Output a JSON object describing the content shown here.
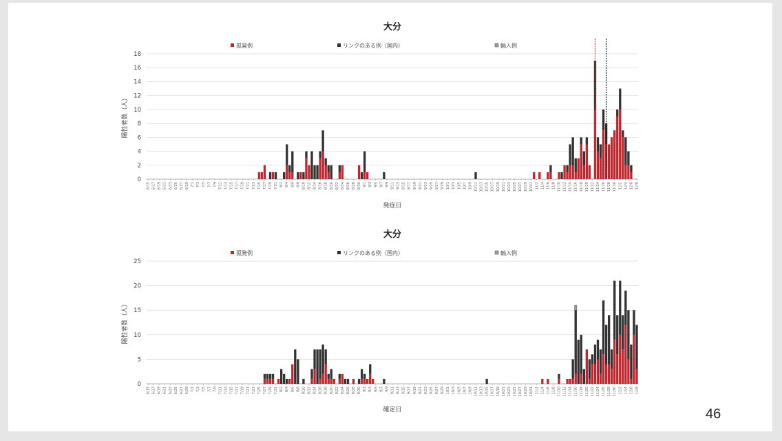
{
  "page_number": "46",
  "colors": {
    "isolated": "#c0262d",
    "linked": "#333333",
    "imported": "#9a9a9a",
    "grid": "#d9d9d9"
  },
  "x_tick_labels": [
    "6/15",
    "6/17",
    "6/19",
    "6/21",
    "6/23",
    "6/25",
    "6/27",
    "6/29",
    "7/1",
    "7/3",
    "7/5",
    "7/7",
    "7/9",
    "7/11",
    "7/13",
    "7/15",
    "7/17",
    "7/19",
    "7/21",
    "7/23",
    "7/25",
    "7/27",
    "7/29",
    "7/31",
    "8/2",
    "8/4",
    "8/6",
    "8/8",
    "8/10",
    "8/12",
    "8/14",
    "8/16",
    "8/18",
    "8/20",
    "8/22",
    "8/24",
    "8/26",
    "8/28",
    "8/30",
    "9/1",
    "9/3",
    "9/5",
    "9/7",
    "9/9",
    "9/11",
    "9/13",
    "9/15",
    "9/17",
    "9/19",
    "9/21",
    "9/23",
    "9/25",
    "9/27",
    "9/29",
    "10/1",
    "10/3",
    "10/5",
    "10/7",
    "10/9",
    "10/11",
    "10/13",
    "10/15",
    "10/17",
    "10/19",
    "10/21",
    "10/23",
    "10/25",
    "10/27",
    "10/29",
    "10/31",
    "11/2",
    "11/4",
    "11/6",
    "11/8",
    "11/10",
    "11/12",
    "11/14",
    "11/16",
    "11/18",
    "11/20",
    "11/22",
    "11/24",
    "11/26",
    "11/28",
    "11/30",
    "12/2",
    "12/4",
    "12/6",
    "12/8"
  ],
  "chart_data": [
    {
      "type": "bar",
      "stacked": true,
      "title": "大分",
      "xlabel": "発症日",
      "ylabel": "陽性者数（人）",
      "ylim": [
        0,
        18
      ],
      "yticks": [
        0,
        2,
        4,
        6,
        8,
        10,
        12,
        14,
        16,
        18
      ],
      "legend": [
        "孤発例",
        "リンクのある例（国内）",
        "輸入例"
      ],
      "legend_position": "top",
      "x_start": "6/15",
      "x_end": "12/8",
      "vlines": [
        {
          "date": "11/23",
          "color": "red",
          "style": "dashed"
        },
        {
          "date": "11/27",
          "color": "black",
          "style": "dashed"
        }
      ],
      "columns": [
        "date",
        "孤発例",
        "リンクのある例（国内）",
        "輸入例"
      ],
      "data": [
        [
          "7/25",
          1,
          0,
          0
        ],
        [
          "7/26",
          1,
          0,
          0
        ],
        [
          "7/27",
          2,
          0,
          0
        ],
        [
          "7/29",
          0,
          1,
          0
        ],
        [
          "7/30",
          1,
          0,
          0
        ],
        [
          "7/31",
          0,
          1,
          0
        ],
        [
          "8/3",
          0,
          1,
          0
        ],
        [
          "8/4",
          2,
          3,
          0
        ],
        [
          "8/5",
          1,
          1,
          0
        ],
        [
          "8/6",
          1,
          3,
          0
        ],
        [
          "8/8",
          0,
          1,
          0
        ],
        [
          "8/9",
          1,
          0,
          0
        ],
        [
          "8/10",
          0,
          1,
          0
        ],
        [
          "8/11",
          3,
          1,
          0
        ],
        [
          "8/12",
          2,
          0,
          0
        ],
        [
          "8/13",
          0,
          4,
          0
        ],
        [
          "8/14",
          0,
          2,
          0
        ],
        [
          "8/15",
          0,
          2,
          0
        ],
        [
          "8/16",
          3,
          1,
          0
        ],
        [
          "8/17",
          4,
          3,
          0
        ],
        [
          "8/18",
          2,
          1,
          0
        ],
        [
          "8/19",
          1,
          1,
          0
        ],
        [
          "8/20",
          0,
          2,
          0
        ],
        [
          "8/23",
          1,
          1,
          0
        ],
        [
          "8/24",
          2,
          0,
          0
        ],
        [
          "8/30",
          2,
          0,
          0
        ],
        [
          "8/31",
          0,
          1,
          0
        ],
        [
          "9/1",
          1,
          3,
          0
        ],
        [
          "9/2",
          1,
          0,
          0
        ],
        [
          "9/8",
          0,
          1,
          0
        ],
        [
          "10/11",
          0,
          1,
          0
        ],
        [
          "11/1",
          1,
          0,
          0
        ],
        [
          "11/3",
          1,
          0,
          0
        ],
        [
          "11/6",
          1,
          0,
          0
        ],
        [
          "11/7",
          1,
          1,
          0
        ],
        [
          "11/10",
          1,
          0,
          0
        ],
        [
          "11/11",
          0,
          1,
          0
        ],
        [
          "11/12",
          2,
          0,
          0
        ],
        [
          "11/13",
          1,
          1,
          0
        ],
        [
          "11/14",
          2,
          3,
          0
        ],
        [
          "11/15",
          2,
          4,
          0
        ],
        [
          "11/16",
          1,
          2,
          0
        ],
        [
          "11/17",
          3,
          0,
          0
        ],
        [
          "11/18",
          5,
          1,
          0
        ],
        [
          "11/19",
          2,
          2,
          0
        ],
        [
          "11/20",
          5,
          1,
          0
        ],
        [
          "11/21",
          2,
          0,
          0
        ],
        [
          "11/23",
          10,
          7,
          0
        ],
        [
          "11/24",
          4,
          2,
          0
        ],
        [
          "11/25",
          3,
          2,
          0
        ],
        [
          "11/26",
          7,
          3,
          0
        ],
        [
          "11/27",
          5,
          3,
          0
        ],
        [
          "11/28",
          5,
          0,
          0
        ],
        [
          "11/29",
          6,
          0,
          0
        ],
        [
          "11/30",
          7,
          0,
          0
        ],
        [
          "12/1",
          9,
          1,
          0
        ],
        [
          "12/2",
          10,
          3,
          0
        ],
        [
          "12/3",
          6,
          1,
          0
        ],
        [
          "12/4",
          2,
          4,
          0
        ],
        [
          "12/5",
          2,
          2,
          0
        ],
        [
          "12/6",
          1,
          1,
          0
        ]
      ]
    },
    {
      "type": "bar",
      "stacked": true,
      "title": "大分",
      "xlabel": "確定日",
      "ylabel": "陽性者数（人）",
      "ylim": [
        0,
        25
      ],
      "yticks": [
        0,
        5,
        10,
        15,
        20,
        25
      ],
      "legend": [
        "孤発例",
        "リンクのある例（国内）",
        "輸入例"
      ],
      "legend_position": "top",
      "x_start": "6/15",
      "x_end": "12/8",
      "vlines": [],
      "columns": [
        "date",
        "孤発例",
        "リンクのある例（国内）",
        "輸入例"
      ],
      "data": [
        [
          "7/27",
          1,
          1,
          0
        ],
        [
          "7/28",
          1,
          1,
          0
        ],
        [
          "7/29",
          1,
          1,
          0
        ],
        [
          "7/30",
          1,
          1,
          0
        ],
        [
          "8/1",
          1,
          0,
          0
        ],
        [
          "8/2",
          0,
          3,
          0
        ],
        [
          "8/3",
          0,
          2,
          0
        ],
        [
          "8/4",
          0,
          1,
          0
        ],
        [
          "8/5",
          1,
          0,
          0
        ],
        [
          "8/6",
          4,
          0,
          0
        ],
        [
          "8/7",
          0,
          7,
          0
        ],
        [
          "8/8",
          0,
          5,
          0
        ],
        [
          "8/10",
          0,
          1,
          0
        ],
        [
          "8/13",
          1,
          2,
          0
        ],
        [
          "8/14",
          3,
          4,
          0
        ],
        [
          "8/15",
          0,
          7,
          0
        ],
        [
          "8/16",
          1,
          6,
          0
        ],
        [
          "8/17",
          2,
          6,
          0
        ],
        [
          "8/18",
          4,
          3,
          0
        ],
        [
          "8/19",
          1,
          1,
          0
        ],
        [
          "8/20",
          1,
          2,
          0
        ],
        [
          "8/21",
          1,
          0,
          0
        ],
        [
          "8/23",
          1,
          1,
          0
        ],
        [
          "8/24",
          2,
          0,
          0
        ],
        [
          "8/25",
          0,
          1,
          0
        ],
        [
          "8/26",
          0,
          1,
          0
        ],
        [
          "8/28",
          1,
          0,
          0
        ],
        [
          "8/30",
          0,
          1,
          0
        ],
        [
          "8/31",
          1,
          2,
          0
        ],
        [
          "9/1",
          1,
          1,
          0
        ],
        [
          "9/2",
          1,
          0,
          0
        ],
        [
          "9/3",
          2,
          2,
          0
        ],
        [
          "9/4",
          1,
          0,
          0
        ],
        [
          "9/8",
          0,
          1,
          0
        ],
        [
          "10/15",
          0,
          1,
          0
        ],
        [
          "11/4",
          1,
          0,
          0
        ],
        [
          "11/6",
          1,
          0,
          0
        ],
        [
          "11/10",
          1,
          1,
          0
        ],
        [
          "11/13",
          1,
          0,
          0
        ],
        [
          "11/14",
          1,
          0,
          0
        ],
        [
          "11/15",
          1,
          4,
          0
        ],
        [
          "11/16",
          2,
          13,
          1
        ],
        [
          "11/17",
          0,
          9,
          0
        ],
        [
          "11/18",
          2,
          8,
          0
        ],
        [
          "11/19",
          0,
          3,
          0
        ],
        [
          "11/20",
          7,
          0,
          0
        ],
        [
          "11/21",
          1,
          4,
          0
        ],
        [
          "11/22",
          4,
          2,
          0
        ],
        [
          "11/23",
          4,
          4,
          0
        ],
        [
          "11/24",
          5,
          4,
          0
        ],
        [
          "11/25",
          2,
          5,
          0
        ],
        [
          "11/26",
          6,
          11,
          0
        ],
        [
          "11/27",
          4,
          8,
          0
        ],
        [
          "11/28",
          4,
          10,
          0
        ],
        [
          "11/29",
          3,
          4,
          0
        ],
        [
          "11/30",
          9,
          12,
          0
        ],
        [
          "12/1",
          6,
          8,
          0
        ],
        [
          "12/2",
          10,
          11,
          0
        ],
        [
          "12/3",
          7,
          7,
          0
        ],
        [
          "12/4",
          12,
          7,
          0
        ],
        [
          "12/5",
          5,
          10,
          0
        ],
        [
          "12/6",
          1,
          7,
          0
        ],
        [
          "12/7",
          10,
          5,
          0
        ],
        [
          "12/8",
          3,
          9,
          0
        ]
      ]
    }
  ]
}
